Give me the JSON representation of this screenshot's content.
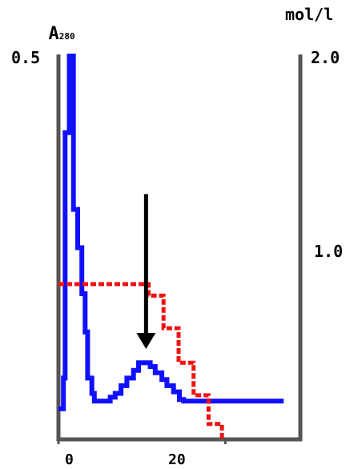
{
  "chart_data": {
    "type": "line",
    "left_axis": {
      "unit": "A",
      "unit_sub": "280",
      "max_label": "0.5",
      "range": [
        0,
        0.5
      ]
    },
    "right_axis": {
      "unit": "mol/l",
      "max_label": "2.0",
      "mid_label": "1.0",
      "range": [
        0,
        2.0
      ]
    },
    "x_axis": {
      "tick_labels": [
        "0",
        "20"
      ],
      "ticks": [
        0,
        20
      ],
      "range": [
        0,
        29
      ]
    },
    "arrow": {
      "x": 10.5,
      "from_y": 0.32,
      "to_y": 0.12
    },
    "series": [
      {
        "color": "#1010ff",
        "axis": "left",
        "points": [
          [
            0,
            0.04
          ],
          [
            0.5,
            0.04
          ],
          [
            0.6,
            0.08
          ],
          [
            0.8,
            0.4
          ],
          [
            1.3,
            0.5
          ],
          [
            1.8,
            0.3
          ],
          [
            2.3,
            0.25
          ],
          [
            2.8,
            0.19
          ],
          [
            3.2,
            0.14
          ],
          [
            3.5,
            0.08
          ],
          [
            4.0,
            0.06
          ],
          [
            4.3,
            0.05
          ],
          [
            5.0,
            0.05
          ],
          [
            5.5,
            0.05
          ],
          [
            6.2,
            0.055
          ],
          [
            6.8,
            0.06
          ],
          [
            7.5,
            0.07
          ],
          [
            8.2,
            0.08
          ],
          [
            9.0,
            0.09
          ],
          [
            9.6,
            0.1
          ],
          [
            10.5,
            0.1
          ],
          [
            11.0,
            0.095
          ],
          [
            11.6,
            0.087
          ],
          [
            12.4,
            0.078
          ],
          [
            13.0,
            0.07
          ],
          [
            13.8,
            0.062
          ],
          [
            14.5,
            0.052
          ],
          [
            15.0,
            0.05
          ],
          [
            17.0,
            0.05
          ],
          [
            23.0,
            0.05
          ],
          [
            27.0,
            0.05
          ]
        ]
      },
      {
        "color": "#ee1111",
        "axis": "right",
        "points": [
          [
            0,
            0.81
          ],
          [
            2.5,
            0.81
          ],
          [
            10.2,
            0.81
          ],
          [
            10.8,
            0.75
          ],
          [
            12.6,
            0.58
          ],
          [
            14.4,
            0.4
          ],
          [
            16.2,
            0.23
          ],
          [
            18.0,
            0.08
          ],
          [
            19.6,
            0.0
          ]
        ]
      }
    ]
  }
}
